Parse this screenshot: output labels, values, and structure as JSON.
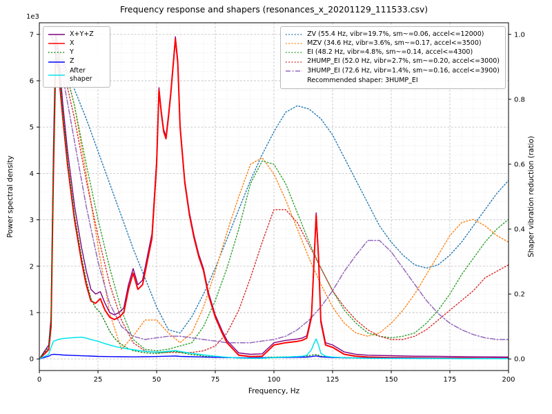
{
  "chart_data": {
    "type": "line",
    "title": "Frequency response and shapers (resonances_x_20201129_111533.csv)",
    "xlabel": "Frequency, Hz",
    "ylabel_left": "Power spectral density",
    "ylabel_right": "Shaper vibration reduction (ratio)",
    "y_multiplier": "1e3",
    "grid": true,
    "xlim": [
      0,
      200
    ],
    "ylim_left": [
      -250,
      7250
    ],
    "ylim_right": [
      -0.0357,
      1.0357
    ],
    "x_ticks": [
      0,
      25,
      50,
      75,
      100,
      125,
      150,
      175,
      200
    ],
    "y_ticks_left": [
      0,
      1,
      2,
      3,
      4,
      5,
      6,
      7
    ],
    "y_ticks_right": [
      0.0,
      0.2,
      0.4,
      0.6,
      0.8,
      1.0
    ],
    "x_minor_step": 5,
    "y_minor_step_left": 200,
    "psd_series": [
      {
        "name": "X+Y+Z",
        "color": "#800080",
        "style": "solid",
        "width": 1.4,
        "x": [
          0,
          4,
          5,
          6,
          7,
          8,
          10,
          12,
          15,
          18,
          20,
          22,
          24,
          26,
          28,
          30,
          32,
          34,
          36,
          38,
          40,
          42,
          44,
          46,
          48,
          50,
          51,
          52,
          53,
          54,
          55,
          56,
          57,
          58,
          59,
          60,
          62,
          64,
          66,
          68,
          70,
          72,
          75,
          78,
          80,
          85,
          90,
          95,
          100,
          105,
          110,
          112,
          114,
          116,
          117,
          118,
          119,
          120,
          122,
          125,
          130,
          135,
          140,
          150,
          160,
          170,
          180,
          190,
          200
        ],
        "y": [
          0,
          300,
          900,
          4500,
          7000,
          6700,
          5500,
          4500,
          3300,
          2400,
          1900,
          1500,
          1400,
          1450,
          1200,
          1000,
          950,
          1000,
          1100,
          1600,
          1950,
          1600,
          1700,
          2200,
          2700,
          4300,
          5850,
          5350,
          4950,
          4800,
          5250,
          5750,
          6350,
          6950,
          6450,
          5050,
          3850,
          3150,
          2650,
          2250,
          1950,
          1450,
          950,
          600,
          400,
          130,
          100,
          110,
          350,
          400,
          430,
          450,
          500,
          950,
          2050,
          3150,
          2250,
          850,
          350,
          300,
          150,
          100,
          80,
          70,
          60,
          55,
          50,
          45,
          40
        ]
      },
      {
        "name": "X",
        "color": "#ff0000",
        "style": "solid",
        "width": 2.0,
        "x": [
          0,
          4,
          5,
          6,
          7,
          8,
          10,
          12,
          15,
          18,
          20,
          22,
          24,
          26,
          28,
          30,
          32,
          34,
          36,
          38,
          40,
          42,
          44,
          46,
          48,
          50,
          51,
          52,
          53,
          54,
          55,
          56,
          57,
          58,
          59,
          60,
          62,
          64,
          66,
          68,
          70,
          72,
          75,
          78,
          80,
          85,
          90,
          95,
          100,
          105,
          110,
          112,
          114,
          116,
          117,
          118,
          119,
          120,
          122,
          125,
          130,
          135,
          140,
          150,
          160,
          170,
          180,
          190,
          200
        ],
        "y": [
          0,
          200,
          700,
          4000,
          6500,
          6300,
          5200,
          4200,
          3000,
          2100,
          1600,
          1250,
          1200,
          1300,
          1050,
          900,
          850,
          900,
          1000,
          1500,
          1850,
          1500,
          1600,
          2100,
          2600,
          4200,
          5800,
          5300,
          4900,
          4750,
          5200,
          5700,
          6300,
          6900,
          6400,
          5000,
          3800,
          3100,
          2600,
          2200,
          1900,
          1400,
          900,
          550,
          350,
          80,
          50,
          60,
          300,
          350,
          380,
          400,
          450,
          900,
          2000,
          3100,
          2200,
          800,
          300,
          250,
          100,
          60,
          40,
          30,
          25,
          20,
          20,
          15,
          15
        ]
      },
      {
        "name": "Y",
        "color": "#008000",
        "style": "dotted",
        "width": 1.3,
        "x": [
          0,
          4,
          5,
          6,
          7,
          8,
          10,
          12,
          15,
          18,
          20,
          22,
          24,
          26,
          28,
          30,
          32,
          34,
          36,
          38,
          40,
          42,
          44,
          46,
          48,
          50,
          51,
          52,
          53,
          54,
          55,
          56,
          57,
          58,
          59,
          60,
          62,
          64,
          66,
          68,
          70,
          72,
          75,
          78,
          80,
          85,
          90,
          95,
          100,
          105,
          110,
          112,
          114,
          116,
          117,
          118,
          119,
          120,
          122,
          125,
          130,
          135,
          140,
          150,
          160,
          170,
          180,
          190,
          200
        ],
        "y": [
          0,
          250,
          800,
          4200,
          6600,
          6400,
          5300,
          4300,
          3100,
          2200,
          1700,
          1300,
          1100,
          1000,
          800,
          600,
          450,
          350,
          280,
          220,
          180,
          160,
          140,
          130,
          120,
          120,
          125,
          130,
          135,
          140,
          150,
          155,
          160,
          160,
          150,
          140,
          120,
          100,
          90,
          80,
          60,
          50,
          40,
          35,
          30,
          25,
          25,
          30,
          40,
          45,
          50,
          55,
          65,
          80,
          90,
          95,
          80,
          60,
          45,
          40,
          30,
          25,
          20,
          15,
          12,
          10,
          10,
          8,
          8
        ]
      },
      {
        "name": "Z",
        "color": "#0000ff",
        "style": "solid",
        "width": 1.4,
        "x": [
          0,
          4,
          5,
          6,
          8,
          10,
          15,
          20,
          25,
          30,
          35,
          40,
          45,
          50,
          55,
          58,
          60,
          65,
          70,
          75,
          80,
          85,
          90,
          95,
          100,
          105,
          110,
          114,
          116,
          118,
          120,
          125,
          130,
          140,
          150,
          160,
          170,
          180,
          190,
          200
        ],
        "y": [
          0,
          60,
          90,
          100,
          95,
          85,
          75,
          65,
          55,
          50,
          48,
          45,
          48,
          52,
          60,
          62,
          55,
          48,
          42,
          35,
          30,
          26,
          24,
          26,
          30,
          33,
          36,
          40,
          50,
          65,
          45,
          30,
          25,
          20,
          18,
          16,
          15,
          12,
          10,
          10
        ]
      },
      {
        "name": "After shaper",
        "color": "#00e5ee",
        "style": "solid",
        "width": 1.5,
        "x": [
          0,
          4,
          5,
          6,
          8,
          10,
          12,
          15,
          18,
          20,
          22,
          25,
          28,
          30,
          33,
          36,
          40,
          44,
          46,
          48,
          50,
          52,
          54,
          56,
          58,
          60,
          65,
          70,
          75,
          80,
          85,
          90,
          95,
          100,
          105,
          110,
          112,
          114,
          116,
          117,
          118,
          119,
          120,
          122,
          125,
          130,
          135,
          140,
          150,
          160,
          170,
          180,
          190,
          200
        ],
        "y": [
          0,
          100,
          250,
          380,
          420,
          440,
          450,
          460,
          470,
          450,
          420,
          380,
          330,
          300,
          260,
          230,
          200,
          170,
          160,
          150,
          150,
          150,
          160,
          170,
          180,
          160,
          120,
          90,
          60,
          35,
          20,
          15,
          15,
          30,
          40,
          50,
          60,
          80,
          200,
          330,
          430,
          300,
          120,
          60,
          40,
          25,
          20,
          15,
          12,
          10,
          10,
          8,
          8,
          8
        ]
      }
    ],
    "shaper_series": [
      {
        "name": "ZV",
        "label": "ZV (55.4 Hz, vibr=19.7%, sm~=0.06, accel<=12000)",
        "color": "#1f77b4",
        "style": "dotted",
        "width": 1.4,
        "x": [
          5,
          10,
          15,
          20,
          25,
          30,
          35,
          40,
          45,
          50,
          55,
          60,
          65,
          70,
          75,
          80,
          85,
          90,
          95,
          100,
          105,
          110,
          115,
          120,
          125,
          130,
          135,
          140,
          145,
          150,
          155,
          160,
          165,
          170,
          175,
          180,
          185,
          190,
          195,
          200
        ],
        "y": [
          1.0,
          0.92,
          0.83,
          0.74,
          0.64,
          0.54,
          0.44,
          0.34,
          0.25,
          0.16,
          0.09,
          0.08,
          0.13,
          0.2,
          0.28,
          0.37,
          0.46,
          0.55,
          0.63,
          0.7,
          0.76,
          0.78,
          0.77,
          0.74,
          0.69,
          0.62,
          0.55,
          0.48,
          0.41,
          0.36,
          0.32,
          0.29,
          0.28,
          0.29,
          0.32,
          0.36,
          0.41,
          0.46,
          0.51,
          0.55
        ]
      },
      {
        "name": "MZV",
        "label": "MZV (34.6 Hz, vibr=3.6%, sm~=0.17, accel<=3500)",
        "color": "#ff7f0e",
        "style": "dotted",
        "width": 1.4,
        "x": [
          5,
          10,
          15,
          20,
          25,
          30,
          35,
          40,
          45,
          50,
          55,
          60,
          65,
          70,
          75,
          80,
          85,
          90,
          95,
          100,
          105,
          110,
          115,
          120,
          125,
          130,
          135,
          140,
          145,
          150,
          155,
          160,
          165,
          170,
          175,
          180,
          185,
          190,
          195,
          200
        ],
        "y": [
          1.0,
          0.93,
          0.78,
          0.57,
          0.35,
          0.14,
          0.03,
          0.07,
          0.12,
          0.12,
          0.08,
          0.05,
          0.08,
          0.16,
          0.27,
          0.39,
          0.5,
          0.6,
          0.62,
          0.57,
          0.49,
          0.4,
          0.31,
          0.23,
          0.16,
          0.11,
          0.08,
          0.07,
          0.08,
          0.11,
          0.15,
          0.2,
          0.26,
          0.32,
          0.38,
          0.42,
          0.43,
          0.41,
          0.38,
          0.36
        ]
      },
      {
        "name": "EI",
        "label": "EI (48.2 Hz, vibr=4.8%, sm~=0.14, accel<=4300)",
        "color": "#2ca02c",
        "style": "dotted",
        "width": 1.4,
        "x": [
          5,
          10,
          15,
          20,
          25,
          30,
          35,
          40,
          45,
          50,
          55,
          60,
          65,
          70,
          75,
          80,
          85,
          90,
          95,
          100,
          105,
          110,
          115,
          120,
          125,
          130,
          135,
          140,
          145,
          150,
          155,
          160,
          165,
          170,
          175,
          180,
          185,
          190,
          195,
          200
        ],
        "y": [
          1.0,
          0.92,
          0.78,
          0.6,
          0.43,
          0.28,
          0.15,
          0.06,
          0.03,
          0.025,
          0.03,
          0.04,
          0.05,
          0.1,
          0.18,
          0.28,
          0.4,
          0.54,
          0.61,
          0.6,
          0.54,
          0.45,
          0.36,
          0.28,
          0.21,
          0.15,
          0.11,
          0.08,
          0.07,
          0.065,
          0.07,
          0.08,
          0.11,
          0.15,
          0.2,
          0.26,
          0.31,
          0.36,
          0.4,
          0.43
        ]
      },
      {
        "name": "2HUMP_EI",
        "label": "2HUMP_EI (52.0 Hz, vibr=2.7%, sm~=0.20, accel<=3000)",
        "color": "#d62728",
        "style": "dotted",
        "width": 1.4,
        "x": [
          5,
          10,
          15,
          20,
          25,
          30,
          35,
          40,
          45,
          50,
          55,
          60,
          65,
          70,
          75,
          80,
          85,
          90,
          95,
          100,
          105,
          110,
          115,
          120,
          125,
          130,
          135,
          140,
          145,
          150,
          155,
          160,
          165,
          170,
          175,
          180,
          185,
          190,
          195,
          200
        ],
        "y": [
          1.0,
          0.9,
          0.74,
          0.55,
          0.38,
          0.23,
          0.12,
          0.05,
          0.025,
          0.02,
          0.02,
          0.02,
          0.02,
          0.025,
          0.04,
          0.08,
          0.15,
          0.25,
          0.36,
          0.46,
          0.46,
          0.42,
          0.35,
          0.28,
          0.21,
          0.16,
          0.12,
          0.09,
          0.07,
          0.06,
          0.06,
          0.07,
          0.09,
          0.12,
          0.15,
          0.18,
          0.21,
          0.25,
          0.27,
          0.29
        ]
      },
      {
        "name": "3HUMP_EI",
        "label": "3HUMP_EI (72.6 Hz, vibr=1.4%, sm~=0.16, accel<=3900)",
        "color": "#9467bd",
        "style": "dashdot",
        "width": 1.5,
        "x": [
          5,
          10,
          15,
          20,
          25,
          30,
          35,
          40,
          45,
          50,
          55,
          60,
          65,
          70,
          75,
          80,
          85,
          90,
          95,
          100,
          105,
          110,
          115,
          120,
          125,
          130,
          135,
          140,
          145,
          150,
          155,
          160,
          165,
          170,
          175,
          180,
          185,
          190,
          195,
          200
        ],
        "y": [
          1.0,
          0.87,
          0.67,
          0.47,
          0.3,
          0.17,
          0.1,
          0.07,
          0.06,
          0.065,
          0.07,
          0.07,
          0.065,
          0.06,
          0.055,
          0.05,
          0.05,
          0.05,
          0.055,
          0.06,
          0.07,
          0.09,
          0.12,
          0.16,
          0.21,
          0.27,
          0.32,
          0.365,
          0.365,
          0.33,
          0.28,
          0.23,
          0.18,
          0.14,
          0.11,
          0.09,
          0.075,
          0.065,
          0.06,
          0.06
        ]
      }
    ],
    "recommended_note": "Recommended shaper: 3HUMP_EI"
  }
}
